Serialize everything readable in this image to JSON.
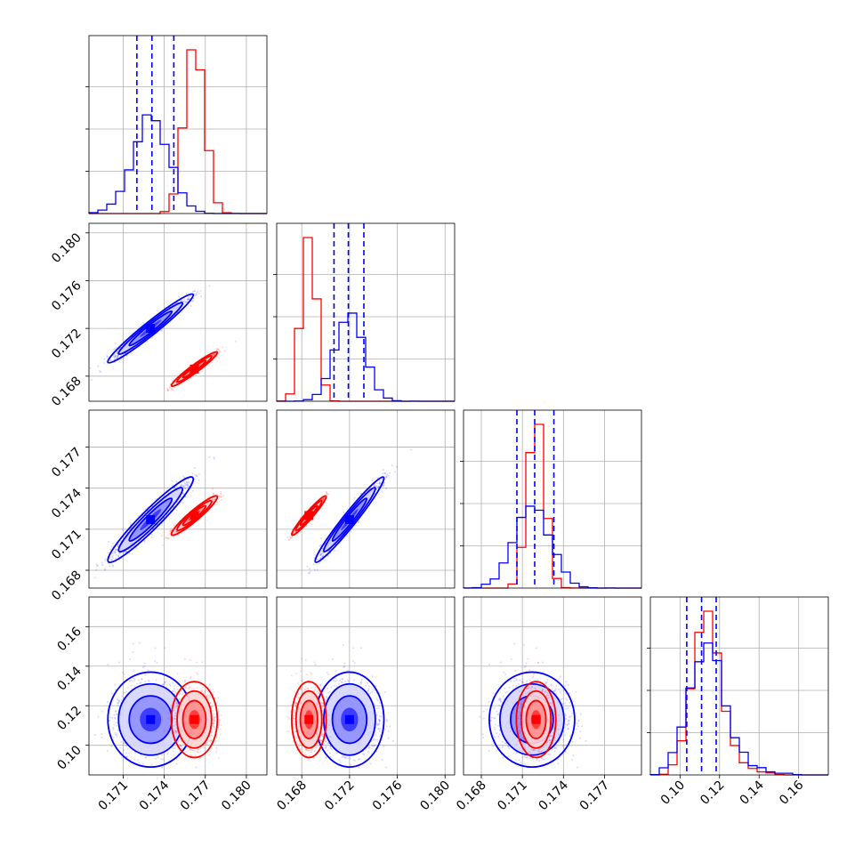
{
  "chart_data": {
    "type": "corner",
    "parameters": [
      {
        "ticks": [
          "0.171",
          "0.174",
          "0.177",
          "0.180"
        ],
        "tick_values": [
          0.171,
          0.174,
          0.177,
          0.18
        ],
        "range": [
          0.1685,
          0.1815
        ]
      },
      {
        "ticks": [
          "0.168",
          "0.172",
          "0.176",
          "0.180"
        ],
        "tick_values": [
          0.168,
          0.172,
          0.176,
          0.18
        ],
        "range": [
          0.1659,
          0.1808
        ]
      },
      {
        "ticks": [
          "0.168",
          "0.171",
          "0.174",
          "0.177"
        ],
        "tick_values": [
          0.168,
          0.171,
          0.174,
          0.177
        ],
        "range": [
          0.1667,
          0.1797
        ]
      },
      {
        "ticks": [
          "0.10",
          "0.12",
          "0.14",
          "0.16"
        ],
        "tick_values": [
          0.1,
          0.12,
          0.14,
          0.16
        ],
        "range": [
          0.085,
          0.175
        ]
      }
    ],
    "grid": true,
    "series": [
      {
        "color": "#0000ff",
        "quantile_lines": [
          [
            0.172,
            0.1731,
            0.1747
          ],
          [
            0.1707,
            0.1719,
            0.1732
          ],
          [
            0.1706,
            0.1719,
            0.1733
          ],
          [
            0.1034,
            0.1109,
            0.1183
          ]
        ],
        "means": [
          0.173,
          0.172,
          0.1717,
          0.113
        ],
        "sds": [
          0.0013,
          0.0012,
          0.0013,
          0.01
        ],
        "correlations": [
          [
            1,
            0.97,
            0.95,
            0.0
          ],
          [
            0.97,
            1,
            0.97,
            0.0
          ],
          [
            0.95,
            0.97,
            1,
            0.0
          ],
          [
            0.0,
            0.0,
            0.0,
            1
          ]
        ]
      },
      {
        "color": "#ff0000",
        "means": [
          0.1762,
          0.1686,
          0.172,
          0.113
        ],
        "sds": [
          0.0007,
          0.0006,
          0.0006,
          0.008
        ],
        "correlations": [
          [
            1,
            0.96,
            0.94,
            0.0
          ],
          [
            0.96,
            1,
            0.96,
            0.0
          ],
          [
            0.94,
            0.96,
            1,
            0.0
          ],
          [
            0.0,
            0.0,
            0.0,
            1
          ]
        ]
      }
    ],
    "panels": [
      {
        "row": 1,
        "col": 0,
        "x": 0,
        "y": 1,
        "centers": [
          [
            0.173,
            0.1716
          ],
          [
            0.1762,
            0.1686
          ]
        ]
      },
      {
        "row": 2,
        "col": 0,
        "x": 0,
        "y": 2,
        "centers": [
          [
            0.173,
            0.1716
          ],
          [
            0.1762,
            0.1716
          ]
        ]
      },
      {
        "row": 2,
        "col": 1,
        "x": 1,
        "y": 2,
        "centers": [
          [
            0.172,
            0.1716
          ],
          [
            0.1686,
            0.1716
          ]
        ]
      },
      {
        "row": 3,
        "col": 0,
        "x": 0,
        "y": 3,
        "centers": [
          [
            0.1726,
            0.113
          ],
          [
            0.1762,
            0.113
          ]
        ]
      },
      {
        "row": 3,
        "col": 1,
        "x": 1,
        "y": 3,
        "centers": [
          [
            0.172,
            0.113
          ],
          [
            0.1686,
            0.113
          ]
        ]
      },
      {
        "row": 3,
        "col": 2,
        "x": 2,
        "y": 3,
        "centers": [
          [
            0.172,
            0.113
          ],
          [
            0.1721,
            0.113
          ]
        ]
      }
    ]
  }
}
